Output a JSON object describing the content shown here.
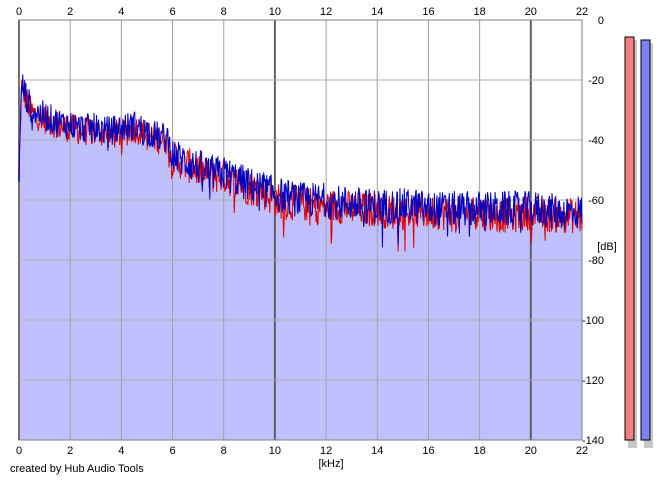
{
  "chart_data": {
    "type": "area",
    "title": "",
    "xlabel": "[kHz]",
    "ylabel": "[dB]",
    "xlim": [
      0,
      22
    ],
    "ylim": [
      -140,
      0
    ],
    "x_ticks": [
      0,
      2,
      4,
      6,
      8,
      10,
      12,
      14,
      16,
      18,
      20,
      22
    ],
    "y_ticks": [
      0,
      -20,
      -40,
      -60,
      -80,
      -100,
      -120,
      -140
    ],
    "grid": true,
    "fill_color": "#c0c0ff",
    "series": [
      {
        "color": "#e00000",
        "x": [
          0,
          0.1,
          0.3,
          0.5,
          1,
          1.5,
          2,
          2.5,
          3,
          3.5,
          4,
          4.5,
          5,
          5.5,
          5.8,
          6,
          6.5,
          7,
          7.5,
          8,
          8.5,
          9,
          9.5,
          10,
          10.5,
          11,
          11.5,
          12,
          12.5,
          13,
          13.5,
          14,
          14.5,
          15,
          15.5,
          16,
          16.5,
          17,
          17.5,
          18,
          18.5,
          19,
          19.5,
          20,
          20.5,
          21,
          21.5,
          22
        ],
        "values": [
          -52,
          -22,
          -27,
          -31,
          -33,
          -35,
          -36,
          -37,
          -37,
          -38,
          -38,
          -36,
          -38,
          -40,
          -40,
          -46,
          -48,
          -50,
          -52,
          -52,
          -54,
          -56,
          -57,
          -60,
          -61,
          -61,
          -62,
          -62,
          -62,
          -63,
          -63,
          -63,
          -64,
          -64,
          -64,
          -64,
          -64,
          -65,
          -64,
          -64,
          -65,
          -65,
          -65,
          -64,
          -65,
          -65,
          -65,
          -66
        ]
      },
      {
        "color": "#0000c0",
        "x": [
          0,
          0.1,
          0.3,
          0.5,
          1,
          1.5,
          2,
          2.5,
          3,
          3.5,
          4,
          4.5,
          5,
          5.5,
          5.8,
          6,
          6.5,
          7,
          7.5,
          8,
          8.5,
          9,
          9.5,
          10,
          10.5,
          11,
          11.5,
          12,
          12.5,
          13,
          13.5,
          14,
          14.5,
          15,
          15.5,
          16,
          16.5,
          17,
          17.5,
          18,
          18.5,
          19,
          19.5,
          20,
          20.5,
          21,
          21.5,
          22
        ],
        "values": [
          -54,
          -21,
          -26,
          -30,
          -32,
          -34,
          -35,
          -36,
          -36,
          -37,
          -36,
          -35,
          -37,
          -39,
          -39,
          -45,
          -47,
          -49,
          -51,
          -51,
          -53,
          -55,
          -56,
          -58,
          -59,
          -60,
          -60,
          -60,
          -61,
          -61,
          -62,
          -62,
          -62,
          -62,
          -62,
          -63,
          -63,
          -63,
          -63,
          -63,
          -63,
          -63,
          -63,
          -63,
          -63,
          -64,
          -64,
          -64
        ]
      }
    ]
  },
  "level_meters": [
    {
      "color": "#f08080",
      "level_db": -3
    },
    {
      "color": "#8080f0",
      "level_db": -4
    }
  ],
  "credit": "created by Hub Audio Tools"
}
